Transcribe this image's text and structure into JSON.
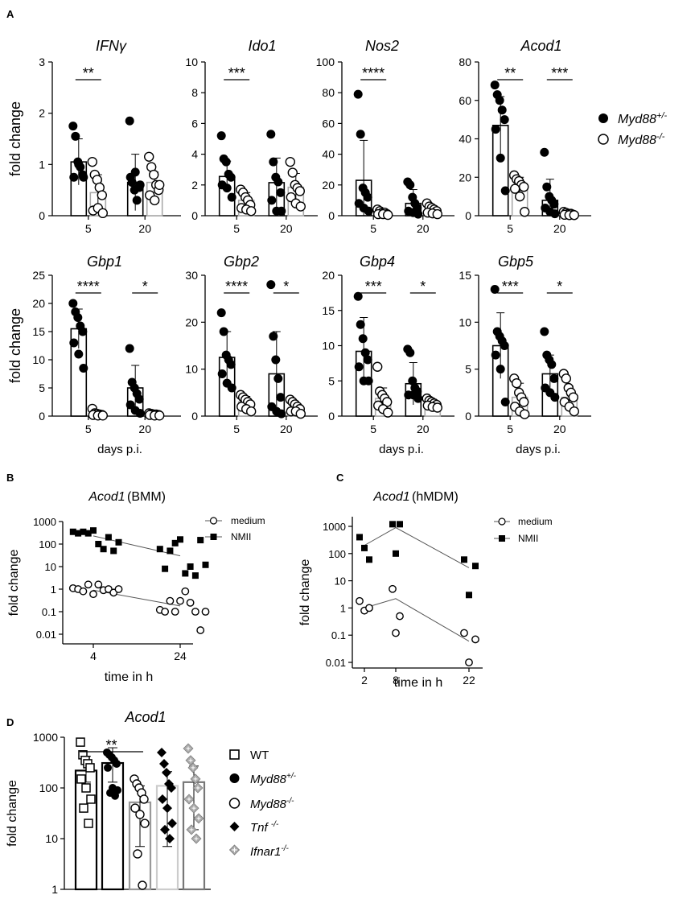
{
  "panel_labels": {
    "a": "A",
    "b": "B",
    "c": "C",
    "d": "D"
  },
  "legend_a": {
    "items": [
      {
        "label": "Myd88",
        "sup": "+/-",
        "marker": "filled-circle"
      },
      {
        "label": "Myd88",
        "sup": "-/-",
        "marker": "open-circle"
      }
    ]
  },
  "legend_b": {
    "items": [
      {
        "label": "medium",
        "marker": "open-circle"
      },
      {
        "label": "NMII",
        "marker": "filled-square"
      }
    ]
  },
  "legend_c": {
    "items": [
      {
        "label": "medium",
        "marker": "open-circle"
      },
      {
        "label": "NMII",
        "marker": "filled-square"
      }
    ]
  },
  "legend_d": {
    "items": [
      {
        "label": "WT",
        "sup": "",
        "italic": false,
        "marker": "open-square"
      },
      {
        "label": "Myd88",
        "sup": "+/-",
        "italic": true,
        "marker": "filled-circle"
      },
      {
        "label": "Myd88",
        "sup": "-/-",
        "italic": true,
        "marker": "open-circle"
      },
      {
        "label": "Tnf ",
        "sup": "-/-",
        "italic": true,
        "marker": "filled-diamond"
      },
      {
        "label": "Ifnar1",
        "sup": "-/-",
        "italic": true,
        "marker": "gray-diamond"
      }
    ]
  },
  "chart_data": [
    {
      "type": "bar",
      "title": "IFNγ",
      "ylabel": "fold change",
      "xlabel": "",
      "categories": [
        "5",
        "20"
      ],
      "ylim": [
        0,
        3
      ],
      "yticks": [
        0,
        1,
        2,
        3
      ],
      "ytick_labels": [
        "0",
        "1",
        "2",
        "3"
      ],
      "series": [
        {
          "name": "Myd88+/-",
          "values": [
            1.05,
            0.65
          ],
          "sd": [
            0.45,
            0.55
          ],
          "points": [
            [
              1.75,
              1.55,
              1.05,
              0.95,
              0.8,
              0.75,
              1.0,
              0.75
            ],
            [
              1.85,
              0.65,
              0.5,
              0.3,
              0.55,
              0.75,
              0.85,
              0.6
            ]
          ]
        },
        {
          "name": "Myd88-/-",
          "values": [
            0.45,
            0.65
          ],
          "sd": [
            0.35,
            0.2
          ],
          "points": [
            [
              1.05,
              0.8,
              0.7,
              0.55,
              0.4,
              0.1,
              0.15,
              0.05
            ],
            [
              1.15,
              0.95,
              0.8,
              0.6,
              0.5,
              0.4,
              0.3,
              0.6
            ]
          ]
        }
      ],
      "significance": [
        {
          "category": "5",
          "label": "**"
        }
      ]
    },
    {
      "type": "bar",
      "title": "Ido1",
      "ylabel": "",
      "xlabel": "",
      "categories": [
        "5",
        "20"
      ],
      "ylim": [
        0,
        10
      ],
      "yticks": [
        0,
        2,
        4,
        6,
        8,
        10
      ],
      "ytick_labels": [
        "0",
        "2",
        "4",
        "6",
        "8",
        "10"
      ],
      "series": [
        {
          "name": "Myd88+/-",
          "values": [
            2.55,
            2.15
          ],
          "sd": [
            1.0,
            1.6
          ],
          "points": [
            [
              5.2,
              3.7,
              3.5,
              2.7,
              2.5,
              2.0,
              1.8,
              1.2
            ],
            [
              5.3,
              3.5,
              2.5,
              2.2,
              1.5,
              1.0,
              0.3,
              0.3
            ]
          ]
        },
        {
          "name": "Myd88-/-",
          "values": [
            1.0,
            1.85
          ],
          "sd": [
            0.5,
            0.9
          ],
          "points": [
            [
              1.7,
              1.5,
              1.2,
              1.0,
              0.7,
              0.5,
              0.4,
              0.3
            ],
            [
              3.5,
              2.8,
              2.0,
              1.8,
              1.6,
              1.2,
              0.8,
              0.6
            ]
          ]
        }
      ],
      "significance": [
        {
          "category": "5",
          "label": "***"
        }
      ]
    },
    {
      "type": "bar",
      "title": "Nos2",
      "ylabel": "",
      "xlabel": "",
      "categories": [
        "5",
        "20"
      ],
      "ylim": [
        0,
        100
      ],
      "yticks": [
        0,
        20,
        40,
        60,
        80,
        100
      ],
      "ytick_labels": [
        "0",
        "20",
        "40",
        "60",
        "80",
        "100"
      ],
      "series": [
        {
          "name": "Myd88+/-",
          "values": [
            23,
            8
          ],
          "sd": [
            26,
            9
          ],
          "points": [
            [
              79,
              53,
              18,
              15,
              12,
              8,
              5,
              3
            ],
            [
              22,
              20,
              12,
              8,
              5,
              3,
              2,
              1
            ]
          ]
        },
        {
          "name": "Myd88-/-",
          "values": [
            1.5,
            3
          ],
          "sd": [
            1.5,
            2.5
          ],
          "points": [
            [
              4,
              3,
              2,
              2,
              1,
              1,
              1,
              0.5
            ],
            [
              8,
              6,
              5,
              4,
              3,
              2,
              1.5,
              1
            ]
          ]
        }
      ],
      "significance": [
        {
          "category": "5",
          "label": "****"
        }
      ]
    },
    {
      "type": "bar",
      "title": "Acod1",
      "ylabel": "",
      "xlabel": "",
      "categories": [
        "5",
        "20"
      ],
      "ylim": [
        0,
        80
      ],
      "yticks": [
        0,
        20,
        40,
        60,
        80
      ],
      "ytick_labels": [
        "0",
        "20",
        "40",
        "60",
        "80"
      ],
      "series": [
        {
          "name": "Myd88+/-",
          "values": [
            47,
            8
          ],
          "sd": [
            15,
            11
          ],
          "points": [
            [
              68,
              63,
              60,
              55,
              50,
              45,
              30,
              13
            ],
            [
              33,
              15,
              10,
              8,
              6,
              4,
              2,
              1
            ]
          ]
        },
        {
          "name": "Myd88-/-",
          "values": [
            15,
            1
          ],
          "sd": [
            5,
            0.8
          ],
          "points": [
            [
              21,
              19,
              18,
              16,
              15,
              14,
              10,
              2
            ],
            [
              2,
              1.5,
              1,
              1,
              0.5,
              0.5,
              0.3,
              0.3
            ]
          ]
        }
      ],
      "significance": [
        {
          "category": "5",
          "label": "**"
        },
        {
          "category": "20",
          "label": "***"
        }
      ]
    },
    {
      "type": "bar",
      "title": "Gbp1",
      "ylabel": "fold change",
      "xlabel": "days p.i.",
      "categories": [
        "5",
        "20"
      ],
      "ylim": [
        0,
        25
      ],
      "yticks": [
        0,
        5,
        10,
        15,
        20,
        25
      ],
      "ytick_labels": [
        "0",
        "5",
        "10",
        "15",
        "20",
        "25"
      ],
      "series": [
        {
          "name": "Myd88+/-",
          "values": [
            15.5,
            5
          ],
          "sd": [
            3.5,
            4
          ],
          "points": [
            [
              20,
              18.5,
              17.5,
              16,
              15,
              13,
              11,
              8.5
            ],
            [
              12,
              6,
              5,
              4,
              3,
              2,
              1,
              0.5
            ]
          ]
        },
        {
          "name": "Myd88-/-",
          "values": [
            0.4,
            0.3
          ],
          "sd": [
            0.3,
            0.2
          ],
          "points": [
            [
              1.3,
              0.5,
              0.4,
              0.3,
              0.2,
              0.2,
              0.1,
              0.1
            ],
            [
              0.5,
              0.4,
              0.3,
              0.3,
              0.2,
              0.2,
              0.1,
              0.1
            ]
          ]
        }
      ],
      "significance": [
        {
          "category": "5",
          "label": "****"
        },
        {
          "category": "20",
          "label": "*"
        }
      ]
    },
    {
      "type": "bar",
      "title": "Gbp2",
      "ylabel": "",
      "xlabel": "",
      "categories": [
        "5",
        "20"
      ],
      "ylim": [
        0,
        30
      ],
      "yticks": [
        0,
        10,
        20,
        30
      ],
      "ytick_labels": [
        "0",
        "10",
        "20",
        "30"
      ],
      "series": [
        {
          "name": "Myd88+/-",
          "values": [
            12.5,
            9
          ],
          "sd": [
            5.5,
            9
          ],
          "points": [
            [
              22,
              18,
              13,
              12,
              11,
              9,
              7,
              6
            ],
            [
              28,
              17,
              12,
              8,
              4,
              2,
              1,
              0.5
            ]
          ]
        },
        {
          "name": "Myd88-/-",
          "values": [
            3,
            1.8
          ],
          "sd": [
            1.2,
            1
          ],
          "points": [
            [
              4.5,
              4,
              3.5,
              3,
              2.5,
              2,
              1.5,
              1
            ],
            [
              3.5,
              3,
              2.5,
              2,
              1.5,
              1,
              1,
              0.5
            ]
          ]
        }
      ],
      "significance": [
        {
          "category": "5",
          "label": "****"
        },
        {
          "category": "20",
          "label": "*"
        }
      ]
    },
    {
      "type": "bar",
      "title": "Gbp4",
      "ylabel": "",
      "xlabel": "days p.i.",
      "categories": [
        "5",
        "20"
      ],
      "ylim": [
        0,
        20
      ],
      "yticks": [
        0,
        5,
        10,
        15,
        20
      ],
      "ytick_labels": [
        "0",
        "5",
        "10",
        "15",
        "20"
      ],
      "series": [
        {
          "name": "Myd88+/-",
          "values": [
            9.2,
            4.6
          ],
          "sd": [
            4.8,
            3.0
          ],
          "points": [
            [
              17,
              13,
              11,
              9,
              8,
              7,
              5,
              5
            ],
            [
              9.5,
              9,
              5,
              4,
              3.5,
              3,
              3,
              2.5
            ]
          ]
        },
        {
          "name": "Myd88-/-",
          "values": [
            2.5,
            1.8
          ],
          "sd": [
            1.5,
            0.6
          ],
          "points": [
            [
              7,
              3.5,
              3,
              2.5,
              2,
              1.5,
              1,
              0.5
            ],
            [
              2.5,
              2.2,
              2,
              1.8,
              1.6,
              1.5,
              1.3,
              1.2
            ]
          ]
        }
      ],
      "significance": [
        {
          "category": "5",
          "label": "***"
        },
        {
          "category": "20",
          "label": "*"
        }
      ]
    },
    {
      "type": "bar",
      "title": "Gbp5",
      "ylabel": "",
      "xlabel": "days p.i.",
      "categories": [
        "5",
        "20"
      ],
      "ylim": [
        0,
        15
      ],
      "yticks": [
        0,
        5,
        10,
        15
      ],
      "ytick_labels": [
        "0",
        "5",
        "10",
        "15"
      ],
      "series": [
        {
          "name": "Myd88+/-",
          "values": [
            7.5,
            4.5
          ],
          "sd": [
            3.5,
            2.0
          ],
          "points": [
            [
              13.5,
              9,
              8.5,
              8,
              7.5,
              6.5,
              5,
              1.5
            ],
            [
              9,
              6.5,
              6,
              5.5,
              4,
              3,
              2.5,
              2
            ]
          ]
        },
        {
          "name": "Myd88-/-",
          "values": [
            2,
            2
          ],
          "sd": [
            1.5,
            1.2
          ],
          "points": [
            [
              4,
              3.5,
              2.5,
              2,
              1.5,
              1,
              0.5,
              0.2
            ],
            [
              4.5,
              4,
              3,
              2.5,
              2,
              1.5,
              1,
              0.5
            ]
          ]
        }
      ],
      "significance": [
        {
          "category": "5",
          "label": "***"
        },
        {
          "category": "20",
          "label": "*"
        }
      ]
    },
    {
      "type": "scatter",
      "title": "Acod1",
      "title_suffix": " (BMM)",
      "xlabel": "time in h",
      "ylabel": "fold change",
      "yscale": "log",
      "ylim": [
        0.005,
        1000
      ],
      "yticks": [
        0.01,
        0.1,
        1,
        10,
        100,
        1000
      ],
      "ytick_labels": [
        "0.01",
        "0.1",
        "1",
        "10",
        "100",
        "1000"
      ],
      "x_categories": [
        "4",
        "24"
      ],
      "series": [
        {
          "name": "medium",
          "marker": "open-circle",
          "line": [
            0.9,
            0.18
          ],
          "points": [
            [
              1.1,
              1.0,
              0.8,
              1.6,
              0.6,
              1.6,
              0.9,
              1.0,
              0.7,
              1.0
            ],
            [
              0.12,
              0.1,
              0.3,
              0.1,
              0.3,
              0.8,
              0.25,
              0.1,
              0.015,
              0.1
            ]
          ]
        },
        {
          "name": "NMII",
          "marker": "filled-square",
          "line": [
            230,
            30
          ],
          "points": [
            [
              350,
              300,
              350,
              300,
              400,
              100,
              60,
              200,
              50,
              120
            ],
            [
              60,
              8,
              50,
              110,
              160,
              5,
              10,
              4,
              150,
              12
            ]
          ]
        }
      ]
    },
    {
      "type": "scatter",
      "title": "Acod1",
      "title_suffix": " (hMDM)",
      "xlabel": "time in h",
      "ylabel": "fold change",
      "yscale": "log",
      "ylim": [
        0.005,
        2000
      ],
      "yticks": [
        0.01,
        0.1,
        1,
        10,
        100,
        1000
      ],
      "ytick_labels": [
        "0.01",
        "0.1",
        "1",
        "10",
        "100",
        "1000"
      ],
      "x_values": [
        2,
        8,
        22
      ],
      "x_categories": [
        "2",
        "8",
        "22"
      ],
      "series": [
        {
          "name": "medium",
          "marker": "open-circle",
          "line": [
            1.0,
            2.2,
            0.06
          ],
          "points": [
            [
              1.8,
              0.8,
              1.0
            ],
            [
              5,
              0.5,
              0.12
            ],
            [
              0.12,
              0.07,
              0.01
            ]
          ]
        },
        {
          "name": "NMII",
          "marker": "filled-square",
          "line": [
            200,
            900,
            30
          ],
          "points": [
            [
              400,
              160,
              60
            ],
            [
              1200,
              1200,
              100
            ],
            [
              60,
              35,
              3
            ]
          ]
        }
      ]
    },
    {
      "type": "bar",
      "title": "Acod1",
      "ylabel": "fold change",
      "xlabel": "",
      "yscale": "log",
      "ylim": [
        1,
        1000
      ],
      "yticks": [
        1,
        10,
        100,
        1000
      ],
      "ytick_labels": [
        "1",
        "10",
        "100",
        "1000"
      ],
      "categories": [
        "WT",
        "Myd88+/-",
        "Myd88-/-",
        "Tnf-/-",
        "Ifnar1-/-"
      ],
      "values": [
        220,
        310,
        52,
        110,
        130
      ],
      "error_low": [
        130,
        130,
        7,
        7,
        15
      ],
      "error_high": [
        420,
        620,
        110,
        210,
        270
      ],
      "points": [
        [
          800,
          450,
          350,
          300,
          250,
          150,
          100,
          60,
          40,
          20
        ],
        [
          500,
          450,
          400,
          350,
          300,
          250,
          100,
          90,
          80,
          70
        ],
        [
          150,
          120,
          100,
          80,
          60,
          40,
          30,
          20,
          5,
          1.2
        ],
        [
          500,
          300,
          200,
          120,
          100,
          60,
          40,
          20,
          15,
          10
        ],
        [
          600,
          350,
          250,
          150,
          100,
          60,
          40,
          25,
          15,
          10
        ]
      ],
      "significance": [
        {
          "from": "WT",
          "to": "Myd88-/-",
          "label": "**"
        }
      ]
    }
  ]
}
